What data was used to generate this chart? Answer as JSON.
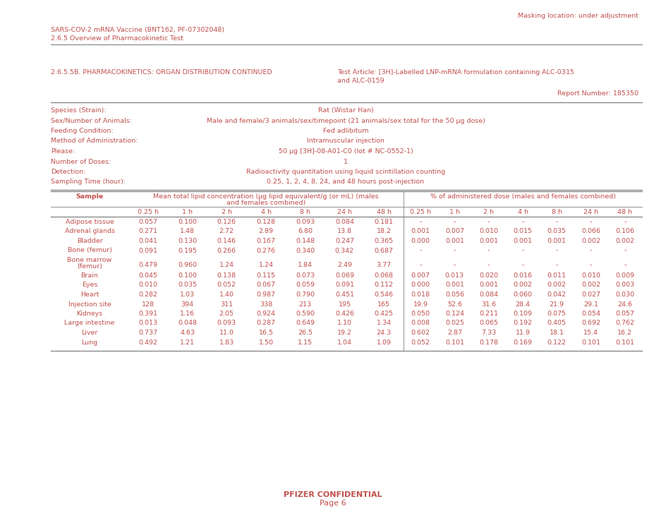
{
  "header_line1": "SARS-COV-2 mRNA Vaccine (BNT162, PF-07302048)",
  "header_line2": "2.6.5 Overview of Pharmacokinetic Test",
  "masking_text": "Masking location: under adjustment",
  "section_title": "2.6.5.5B. PHARMACOKINETICS: ORGAN DISTRIBUTION CONTINUED",
  "test_article_line1": "Test Article: [3H]-Labelled LNP-mRNA formulation containing ALC-0315",
  "test_article_line2": "and ALC-0159",
  "report_number": "Report Number: 185350",
  "meta_rows": [
    [
      "Species (Strain):",
      "Rat (Wistar Han)"
    ],
    [
      "Sex/Number of Animals:",
      "Male and female/3 animals/sex/timepoint (21 animals/sex total for the 50 μg dose)"
    ],
    [
      "Feeding Condition:",
      "Fed adlibitum"
    ],
    [
      "Method of Administration:",
      "Intramuscular injection"
    ],
    [
      "Please:",
      "50 μg [3H]-08-A01-C0 (lot # NC-0552-1)"
    ],
    [
      "Number of Doses:",
      "1"
    ],
    [
      "Detection:",
      "Radioactivity quantitation using liquid scintillation counting"
    ],
    [
      "Sampling Time (hour):",
      "0.25, 1, 2, 4, 8, 24, and 48 hours post-injection"
    ]
  ],
  "col_header1": "Sample",
  "col_header2_line1": "Mean total lipid concentration (μg lipid equivalent/g (or mL) (males",
  "col_header2_line2": "and females combined)",
  "col_header3": "% of administered dose (males and females combined)",
  "time_headers": [
    "0.25 h",
    "1 h",
    "2 h",
    "4 h",
    "8 h",
    "24 h",
    "48 h"
  ],
  "table_rows": [
    [
      "Adipose tissue",
      "0.057",
      "0.100",
      "0.126",
      "0.128",
      "0.093",
      "0.084",
      "0.181",
      "-",
      "-",
      "-",
      "-",
      "-",
      "-",
      "-"
    ],
    [
      "Adrenal glands",
      "0.271",
      "1.48",
      "2.72",
      "2.89",
      "6.80",
      "13.8",
      "18.2",
      "0.001",
      "0.007",
      "0.010",
      "0.015",
      "0.035",
      "0.066",
      "0.106"
    ],
    [
      "Bladder",
      "0.041",
      "0.130",
      "0.146",
      "0.167",
      "0.148",
      "0.247",
      "0.365",
      "0.000",
      "0.001",
      "0.001",
      "0.001",
      "0.001",
      "0.002",
      "0.002"
    ],
    [
      "Bone (femur)",
      "0.091",
      "0.195",
      "0.266",
      "0.276",
      "0.340",
      "0.342",
      "0.687",
      "-",
      "-",
      "-",
      "-",
      "-",
      "-",
      "-"
    ],
    [
      "Bone marrow\n(femur)",
      "0.479",
      "0.960",
      "1.24",
      "1.24",
      "1.84",
      "2.49",
      "3.77",
      "-",
      "-",
      "-",
      "-",
      "-",
      "-",
      "-"
    ],
    [
      "Brain",
      "0.045",
      "0.100",
      "0.138",
      "0.115",
      "0.073",
      "0.069",
      "0.068",
      "0.007",
      "0.013",
      "0.020",
      "0.016",
      "0.011",
      "0.010",
      "0.009"
    ],
    [
      "Eyes",
      "0.010",
      "0.035",
      "0.052",
      "0.067",
      "0.059",
      "0.091",
      "0.112",
      "0.000",
      "0.001",
      "0.001",
      "0.002",
      "0.002",
      "0.002",
      "0.003"
    ],
    [
      "Heart",
      "0.282",
      "1.03",
      "1.40",
      "0.987",
      "0.790",
      "0.451",
      "0.546",
      "0.018",
      "0.056",
      "0.084",
      "0.060",
      "0.042",
      "0.027",
      "0.030"
    ],
    [
      "Injection site",
      "128",
      "394",
      "311",
      "338",
      "213",
      "195",
      "165",
      "19.9",
      "52.6",
      "31.6",
      "28.4",
      "21.9",
      "29.1",
      "24.6"
    ],
    [
      "Kidneys",
      "0.391",
      "1.16",
      "2.05",
      "0.924",
      "0.590",
      "0.426",
      "0.425",
      "0.050",
      "0.124",
      "0.211",
      "0.109",
      "0.075",
      "0.054",
      "0.057"
    ],
    [
      "Large intestine",
      "0.013",
      "0.048",
      "0.093",
      "0.287",
      "0.649",
      "1.10",
      "1.34",
      "0.008",
      "0.025",
      "0.065",
      "0.192",
      "0.405",
      "0.692",
      "0.762"
    ],
    [
      "Liver",
      "0.737",
      "4.63",
      "11.0",
      "16.5",
      "26.5",
      "19.2",
      "24.3",
      "0.602",
      "2.87",
      "7.33",
      "11.9",
      "18.1",
      "15.4",
      "16.2"
    ],
    [
      "Lung",
      "0.492",
      "1.21",
      "1.83",
      "1.50",
      "1.15",
      "1.04",
      "1.09",
      "0.052",
      "0.101",
      "0.178",
      "0.169",
      "0.122",
      "0.101",
      "0.101"
    ]
  ],
  "footer_line1": "PFIZER CONFIDENTIAL",
  "footer_line2": "Page 6",
  "text_color": "#C0504D",
  "line_color": "#808080",
  "bg_color": "#FFFFFF"
}
